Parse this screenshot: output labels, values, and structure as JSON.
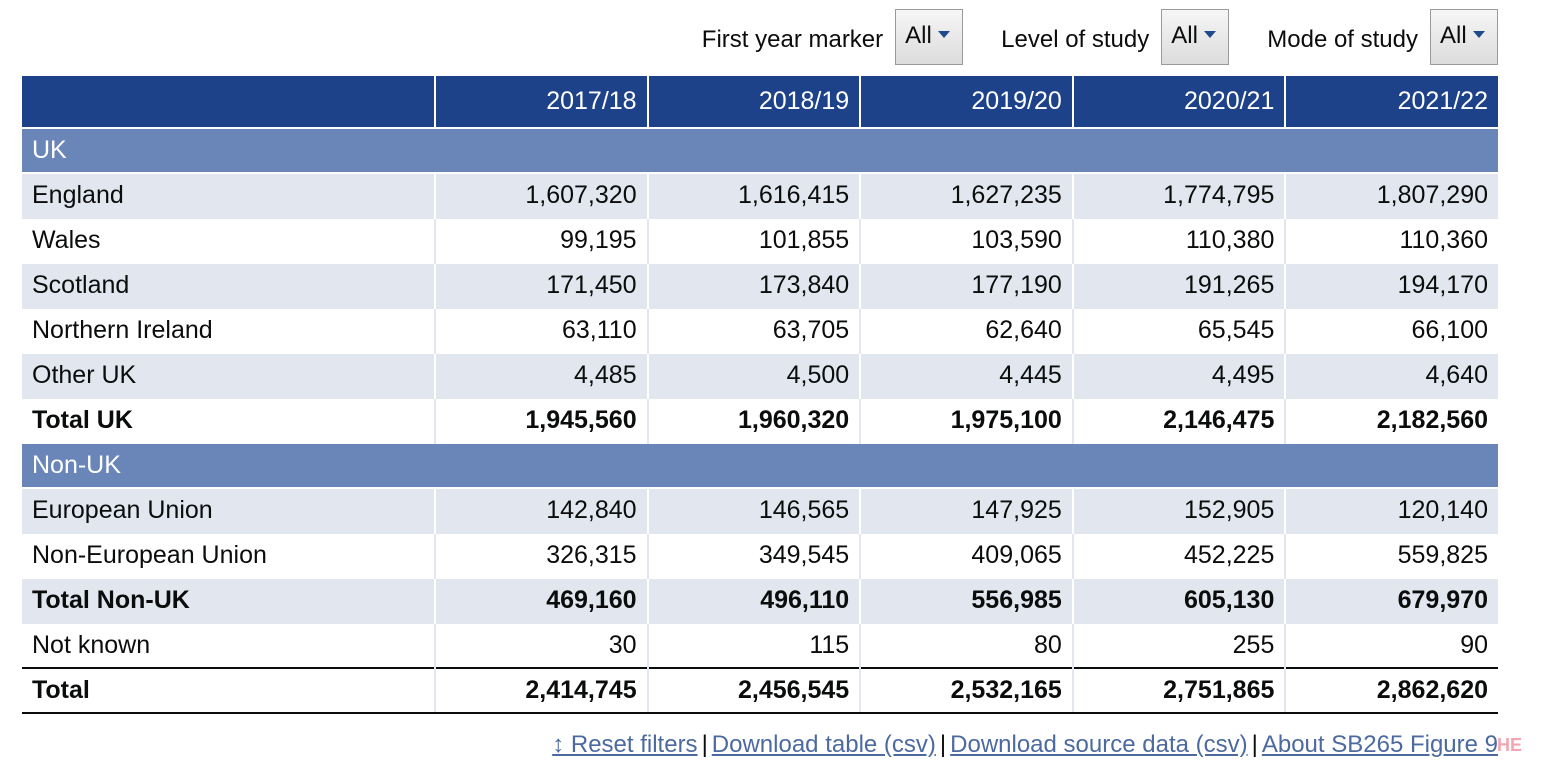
{
  "filters": [
    {
      "label": "First year marker",
      "value": "All"
    },
    {
      "label": "Level of study",
      "value": "All"
    },
    {
      "label": "Mode of study",
      "value": "All"
    }
  ],
  "table": {
    "columns": [
      "",
      "2017/18",
      "2018/19",
      "2019/20",
      "2020/21",
      "2021/22"
    ],
    "sections": [
      {
        "title": "UK",
        "rows": [
          {
            "label": "England",
            "values": [
              "1,607,320",
              "1,616,415",
              "1,627,235",
              "1,774,795",
              "1,807,290"
            ]
          },
          {
            "label": "Wales",
            "values": [
              "99,195",
              "101,855",
              "103,590",
              "110,380",
              "110,360"
            ]
          },
          {
            "label": "Scotland",
            "values": [
              "171,450",
              "173,840",
              "177,190",
              "191,265",
              "194,170"
            ]
          },
          {
            "label": "Northern Ireland",
            "values": [
              "63,110",
              "63,705",
              "62,640",
              "65,545",
              "66,100"
            ]
          },
          {
            "label": "Other UK",
            "values": [
              "4,485",
              "4,500",
              "4,445",
              "4,495",
              "4,640"
            ]
          },
          {
            "label": "Total UK",
            "values": [
              "1,945,560",
              "1,960,320",
              "1,975,100",
              "2,146,475",
              "2,182,560"
            ]
          }
        ]
      },
      {
        "title": "Non-UK",
        "rows": [
          {
            "label": "European Union",
            "values": [
              "142,840",
              "146,565",
              "147,925",
              "152,905",
              "120,140"
            ]
          },
          {
            "label": "Non-European Union",
            "values": [
              "326,315",
              "349,545",
              "409,065",
              "452,225",
              "559,825"
            ]
          },
          {
            "label": "Total Non-UK",
            "values": [
              "469,160",
              "496,110",
              "556,985",
              "605,130",
              "679,970"
            ]
          },
          {
            "label": "Not known",
            "values": [
              "30",
              "115",
              "80",
              "255",
              "90"
            ]
          }
        ]
      }
    ],
    "total": {
      "label": "Total",
      "values": [
        "2,414,745",
        "2,456,545",
        "2,532,165",
        "2,751,865",
        "2,862,620"
      ]
    }
  },
  "links": {
    "reset": "↕ Reset filters",
    "download_table": "Download table (csv)",
    "download_source": "Download source data (csv)",
    "about": "About SB265 Figure 9",
    "separator": "|"
  },
  "logo_text": "HE",
  "colors": {
    "header_bg": "#1d4289",
    "section_bg": "#6a85b8",
    "shade_row": "#e2e6ef",
    "link": "#4c6aa0"
  }
}
